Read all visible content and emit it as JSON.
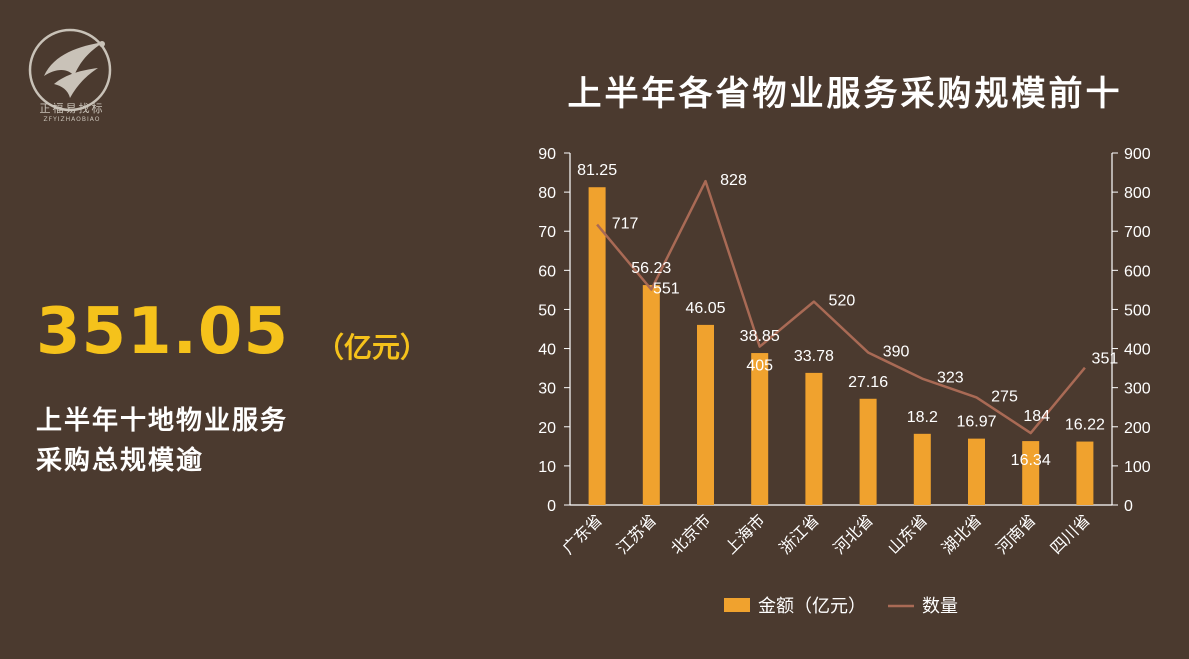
{
  "brand": {
    "name_cn": "正福易找标",
    "name_en": "ZFYIZHAOBIAO"
  },
  "summary": {
    "value": "351.05",
    "unit": "（亿元）",
    "line1": "上半年十地物业服务",
    "line2": "采购总规模逾"
  },
  "colors": {
    "background": "#4b3a2f",
    "bar": "#f0a22e",
    "line": "#a96a55",
    "highlight": "#f5c21b"
  },
  "chart_data": {
    "type": "bar",
    "title": "上半年各省物业服务采购规模前十",
    "categories": [
      "广东省",
      "江苏省",
      "北京市",
      "上海市",
      "浙江省",
      "河北省",
      "山东省",
      "湖北省",
      "河南省",
      "四川省"
    ],
    "series": [
      {
        "name": "金额（亿元）",
        "type": "bar",
        "axis": "left",
        "values": [
          81.25,
          56.23,
          46.05,
          38.85,
          33.78,
          27.16,
          18.2,
          16.97,
          16.34,
          16.22
        ]
      },
      {
        "name": "数量",
        "type": "line",
        "axis": "right",
        "values": [
          717,
          551,
          828,
          405,
          520,
          390,
          323,
          275,
          184,
          351
        ]
      }
    ],
    "y_left": {
      "range": [
        0,
        90
      ],
      "ticks": [
        "0",
        "10",
        "20",
        "30",
        "40",
        "50",
        "60",
        "70",
        "80",
        "90"
      ]
    },
    "y_right": {
      "range": [
        0,
        900
      ],
      "ticks": [
        "0",
        "100",
        "200",
        "300",
        "400",
        "500",
        "600",
        "700",
        "800",
        "900"
      ]
    },
    "grid": false,
    "legend": "bottom"
  }
}
